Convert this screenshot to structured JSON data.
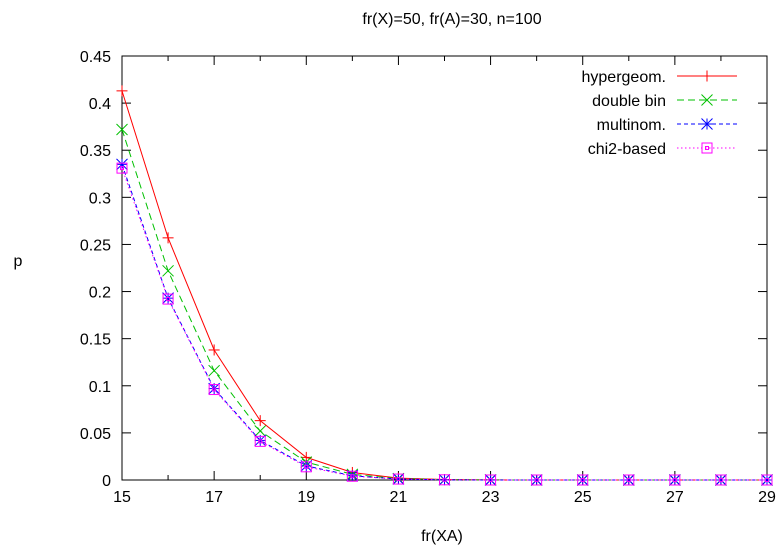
{
  "chart_data": {
    "type": "line",
    "title": "fr(X)=50, fr(A)=30, n=100",
    "xlabel": "fr(XA)",
    "ylabel": "p",
    "xlim": [
      15,
      29
    ],
    "ylim": [
      0,
      0.45
    ],
    "xticks": [
      15,
      17,
      19,
      21,
      23,
      25,
      27,
      29
    ],
    "yticks": [
      0,
      0.05,
      0.1,
      0.15,
      0.2,
      0.25,
      0.3,
      0.35,
      0.4,
      0.45
    ],
    "ytick_labels": [
      "0",
      "0.05",
      "0.1",
      "0.15",
      "0.2",
      "0.25",
      "0.3",
      "0.35",
      "0.4",
      "0.45"
    ],
    "grid": false,
    "legend_position": "top-right",
    "x": [
      15,
      16,
      17,
      18,
      19,
      20,
      21,
      22,
      23,
      24,
      25,
      26,
      27,
      28,
      29
    ],
    "series": [
      {
        "name": "hypergeom.",
        "color": "#ff0000",
        "dash": "solid",
        "marker": "plus",
        "values": [
          0.413,
          0.257,
          0.138,
          0.063,
          0.024,
          0.008,
          0.002,
          0.0005,
          0.0001,
          0,
          0,
          0,
          0,
          0,
          0
        ]
      },
      {
        "name": "double bin",
        "color": "#00c000",
        "dash": "dashed",
        "marker": "cross",
        "values": [
          0.372,
          0.222,
          0.116,
          0.052,
          0.019,
          0.006,
          0.0015,
          0.0003,
          0.0001,
          0,
          0,
          0,
          0,
          0,
          0
        ]
      },
      {
        "name": "multinom.",
        "color": "#0000ff",
        "dash": "short-dashed",
        "marker": "star",
        "values": [
          0.335,
          0.193,
          0.097,
          0.042,
          0.015,
          0.0045,
          0.001,
          0.0002,
          0,
          0,
          0,
          0,
          0,
          0,
          0
        ]
      },
      {
        "name": "chi2-based",
        "color": "#ff00ff",
        "dash": "dotted",
        "marker": "square",
        "values": [
          0.331,
          0.192,
          0.096,
          0.041,
          0.014,
          0.004,
          0.001,
          0.0002,
          0,
          0,
          0,
          0,
          0,
          0,
          0
        ]
      }
    ]
  }
}
